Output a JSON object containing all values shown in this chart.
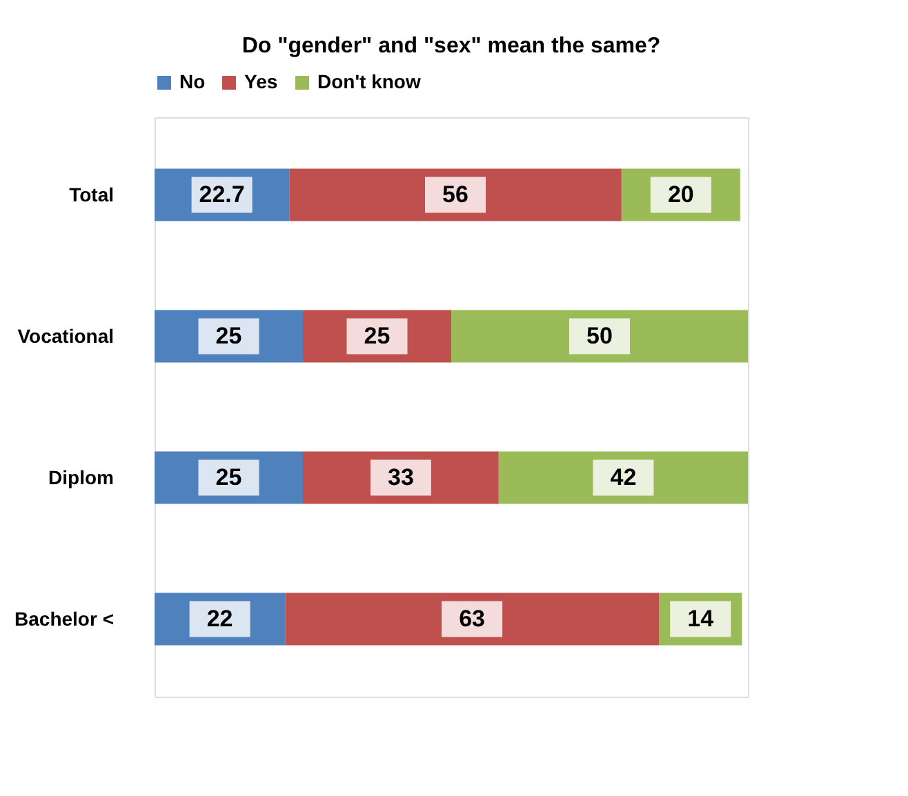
{
  "chart_data": {
    "type": "bar",
    "orientation": "horizontal",
    "stacked": true,
    "title": "Do \"gender\" and \"sex\" mean the same?",
    "categories": [
      "Total",
      "Vocational",
      "Diplom",
      "Bachelor <"
    ],
    "series": [
      {
        "name": "No",
        "color": "#4f81bd",
        "values": [
          22.7,
          25,
          25,
          22
        ]
      },
      {
        "name": "Yes",
        "color": "#c0504d",
        "values": [
          56,
          25,
          33,
          63
        ]
      },
      {
        "name": "Don't know",
        "color": "#9bbb59",
        "values": [
          20,
          50,
          42,
          14
        ]
      }
    ],
    "data_labels": true,
    "legend": "top",
    "grid": false
  }
}
